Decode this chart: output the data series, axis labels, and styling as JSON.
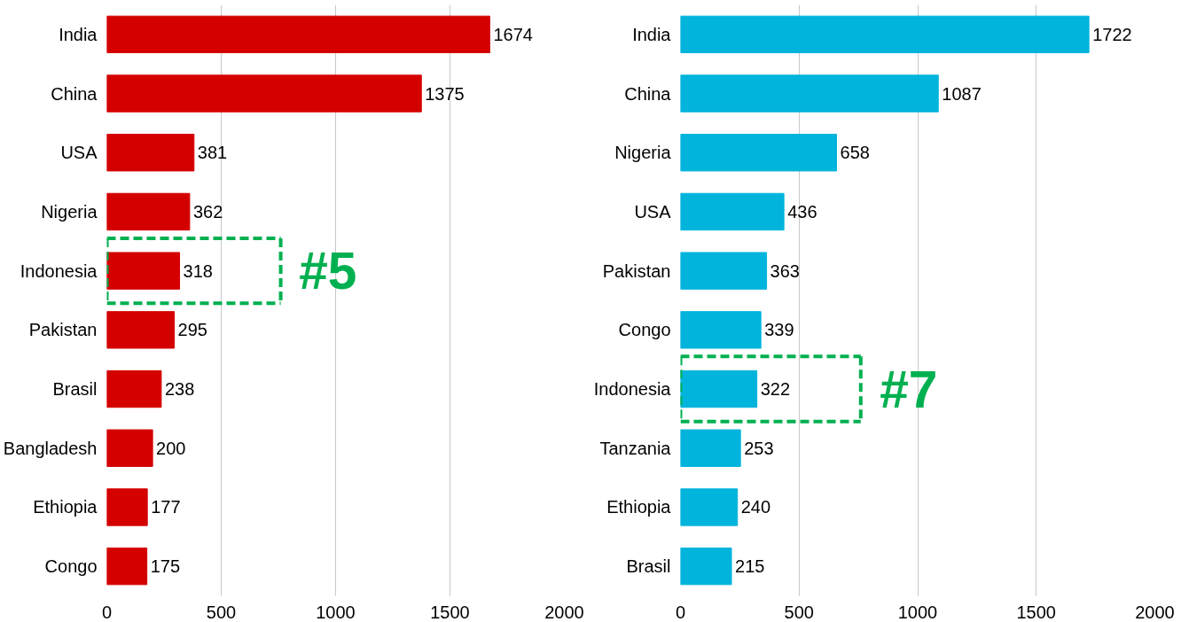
{
  "chart_data": [
    {
      "type": "bar",
      "orientation": "horizontal",
      "categories": [
        "India",
        "China",
        "USA",
        "Nigeria",
        "Indonesia",
        "Pakistan",
        "Brasil",
        "Bangladesh",
        "Ethiopia",
        "Congo"
      ],
      "values": [
        1674,
        1375,
        381,
        362,
        318,
        295,
        238,
        200,
        177,
        175
      ],
      "color": "#d40000",
      "data_labels": true,
      "xlim": [
        0,
        2000
      ],
      "xticks": [
        0,
        500,
        1000,
        1500,
        2000
      ],
      "grid": "x",
      "annotations": [
        "#5"
      ]
    },
    {
      "type": "bar",
      "orientation": "horizontal",
      "categories": [
        "India",
        "China",
        "Nigeria",
        "USA",
        "Pakistan",
        "Congo",
        "Indonesia",
        "Tanzania",
        "Ethiopia",
        "Brasil"
      ],
      "values": [
        1722,
        1087,
        658,
        436,
        363,
        339,
        322,
        253,
        240,
        215
      ],
      "color": "#00b4dc",
      "data_labels": true,
      "xlim": [
        0,
        2000
      ],
      "xticks": [
        0,
        500,
        1000,
        1500,
        2000
      ],
      "grid": "x",
      "annotations": [
        "#7"
      ]
    }
  ]
}
